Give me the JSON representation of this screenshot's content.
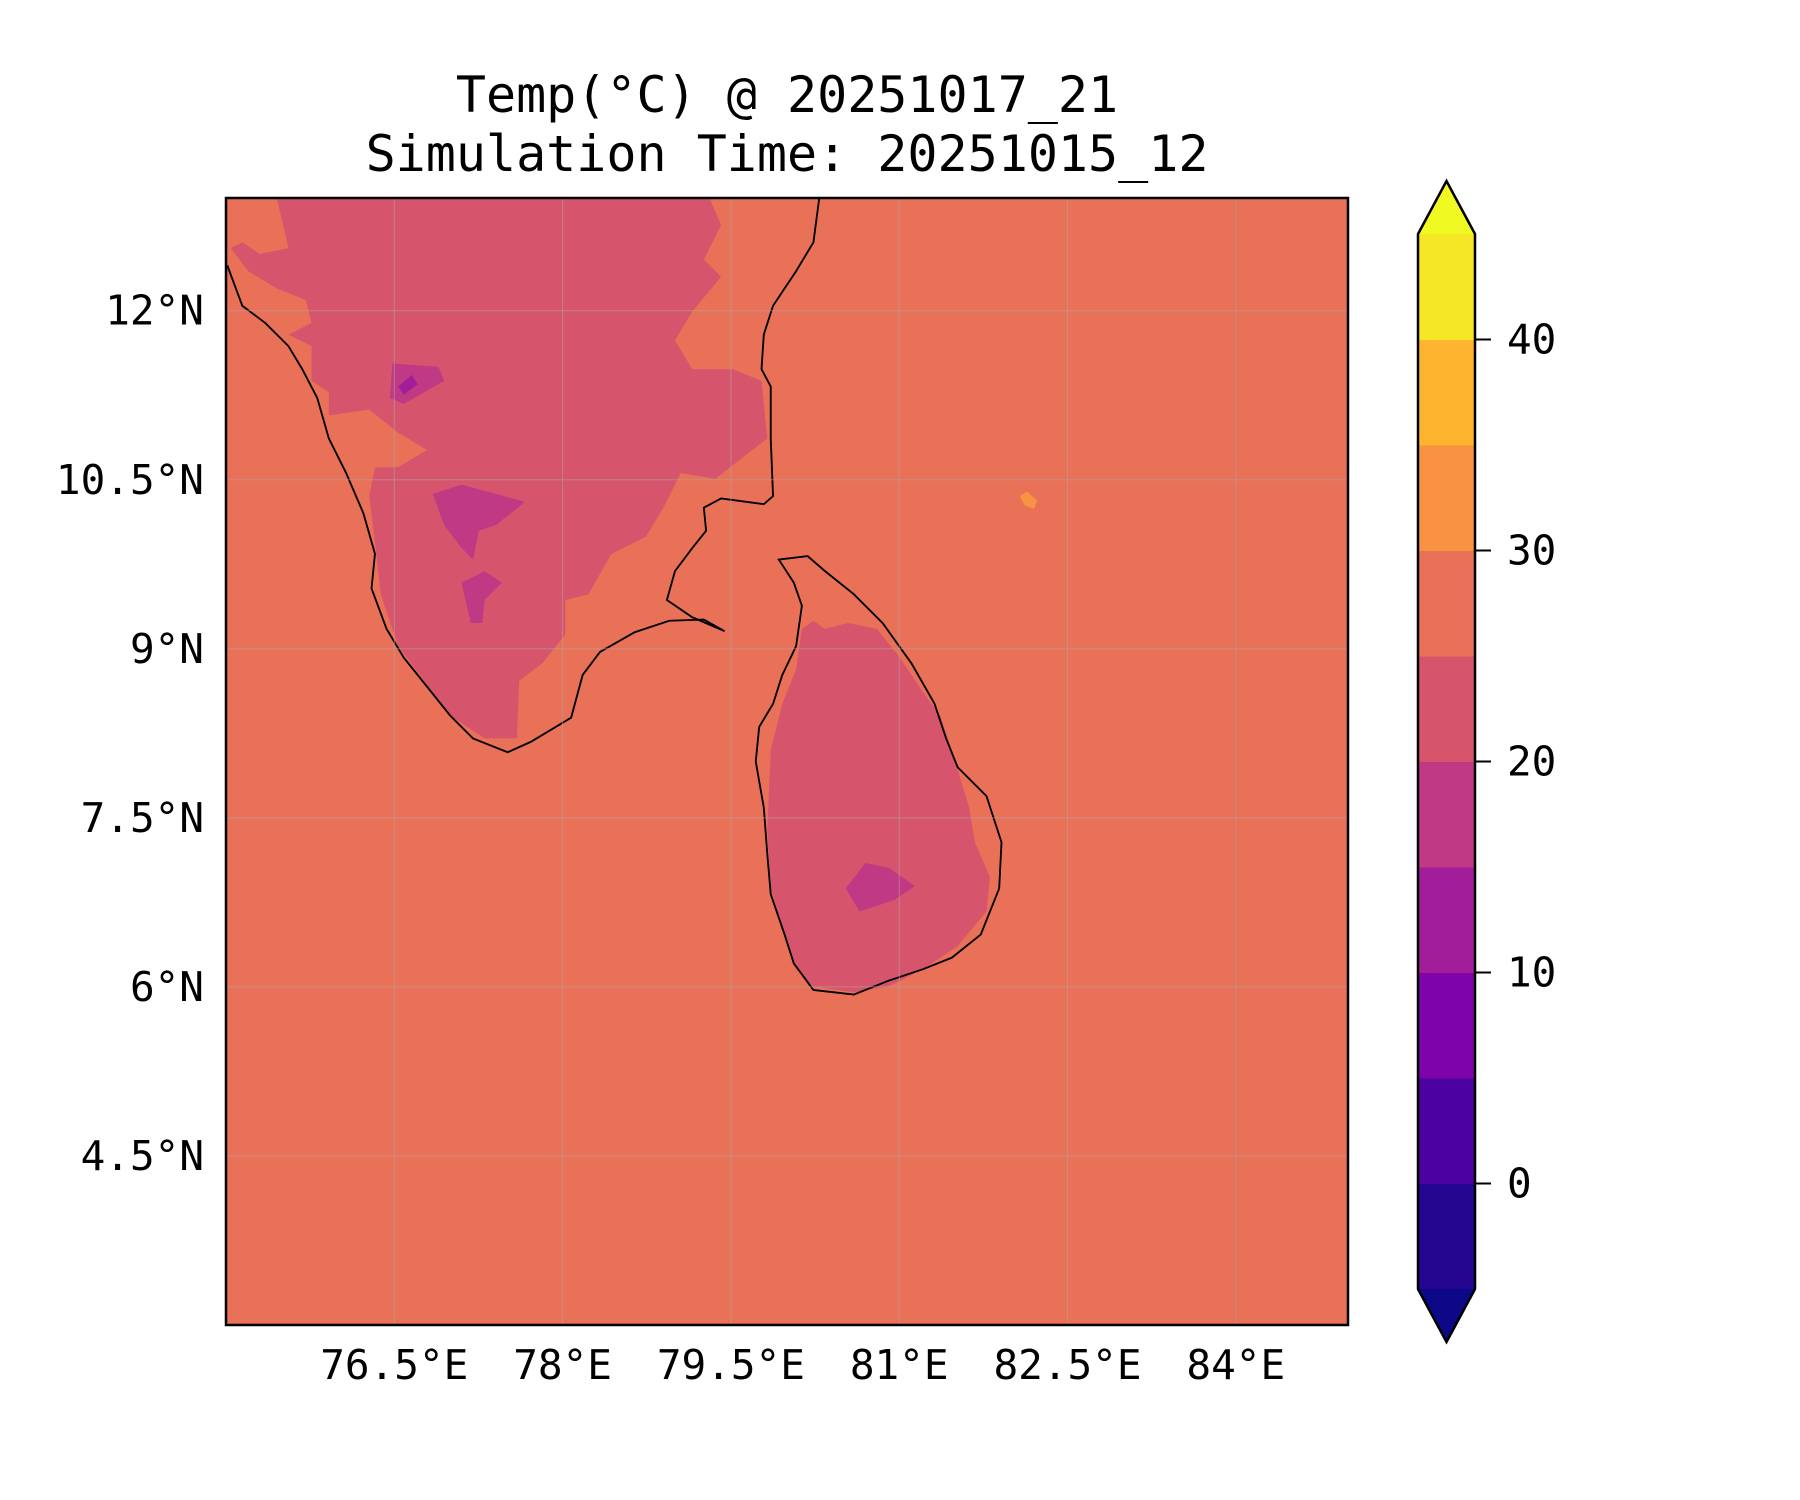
{
  "chart_data": {
    "type": "heatmap",
    "title": "Temp(°C) @ 20251017_21",
    "subtitle": "Simulation Time: 20251015_12",
    "xlabel": "",
    "ylabel": "",
    "xlim": [
      75,
      85
    ],
    "ylim": [
      3,
      13
    ],
    "grid": true,
    "x_ticks": [
      76.5,
      78,
      79.5,
      81,
      82.5,
      84
    ],
    "x_tick_labels": [
      "76.5°E",
      "78°E",
      "79.5°E",
      "81°E",
      "82.5°E",
      "84°E"
    ],
    "y_ticks": [
      12,
      10.5,
      9,
      7.5,
      6,
      4.5
    ],
    "y_tick_labels": [
      "12°N",
      "10.5°N",
      "9°N",
      "7.5°N",
      "6°N",
      "4.5°N"
    ],
    "colorbar": {
      "levels": [
        -5,
        0,
        5,
        10,
        15,
        20,
        25,
        30,
        35,
        40,
        45
      ],
      "colors": [
        "#240691",
        "#4c02a1",
        "#7e03a8",
        "#a21d9a",
        "#bf3984",
        "#d6556d",
        "#e97158",
        "#f89441",
        "#fdb42f",
        "#f5e626"
      ],
      "under_color": "#0d0887",
      "over_color": "#f0f921",
      "extend": "both",
      "ticks": [
        0,
        10,
        20,
        30,
        40
      ],
      "tick_labels": [
        "0",
        "10",
        "20",
        "30",
        "40"
      ]
    },
    "field_summary": {
      "ocean_range": "25-30",
      "inland_range": "20-25",
      "highland_range": "15-20"
    }
  }
}
